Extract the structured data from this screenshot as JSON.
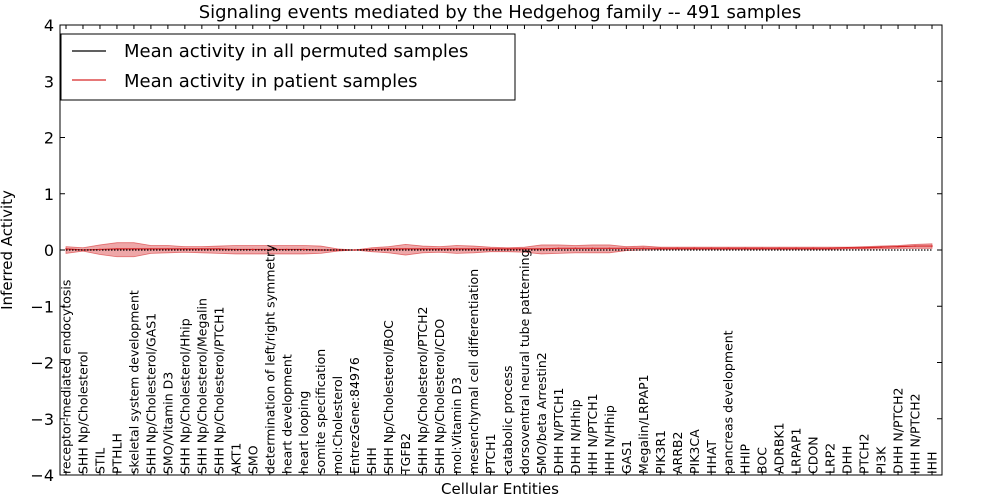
{
  "chart_data": {
    "type": "line",
    "title": "Signaling events mediated by the Hedgehog family -- 491 samples",
    "xlabel": "Cellular Entities",
    "ylabel": "Inferred Activity",
    "ylim": [
      -4,
      4
    ],
    "yticks": [
      4,
      3,
      2,
      1,
      0,
      -1,
      -2,
      -3,
      -4
    ],
    "ytick_labels": [
      "4",
      "3",
      "2",
      "1",
      "0",
      "−1",
      "−2",
      "−3",
      "−4"
    ],
    "grid": false,
    "legend_position": "top-left",
    "legend": [
      {
        "label": "Mean activity in all permuted samples",
        "color": "#000000"
      },
      {
        "label": "Mean activity in patient samples",
        "color": "#d62728"
      }
    ],
    "categories": [
      "receptor-mediated endocytosis",
      "SHH Np/Cholesterol",
      "STIL",
      "PTHLH",
      "skeletal system development",
      "SHH Np/Cholesterol/GAS1",
      "SMO/Vitamin D3",
      "SHH Np/Cholesterol/Hhip",
      "SHH Np/Cholesterol/Megalin",
      "SHH Np/Cholesterol/PTCH1",
      "AKT1",
      "SMO",
      "determination of left/right symmetry",
      "heart development",
      "heart looping",
      "somite specification",
      "mol:Cholesterol",
      "EntrezGene:84976",
      "SHH",
      "SHH Np/Cholesterol/BOC",
      "TGFB2",
      "SHH Np/Cholesterol/PTCH2",
      "SHH Np/Cholesterol/CDO",
      "mol:Vitamin D3",
      "mesenchymal cell differentiation",
      "PTCH1",
      "catabolic process",
      "dorsoventral neural tube patterning",
      "SMO/beta Arrestin2",
      "DHH N/PTCH1",
      "DHH N/Hhip",
      "IHH N/PTCH1",
      "IHH N/Hhip",
      "GAS1",
      "Megalin/LRPAP1",
      "PIK3R1",
      "ARRB2",
      "PIK3CA",
      "HHAT",
      "pancreas development",
      "HHIP",
      "BOC",
      "ADRBK1",
      "LRPAP1",
      "CDON",
      "LRP2",
      "DHH",
      "PTCH2",
      "PI3K",
      "DHH N/PTCH2",
      "IHH N/PTCH2",
      "IHH"
    ],
    "series": [
      {
        "name": "Mean activity in all permuted samples",
        "color": "#000000",
        "values": [
          0,
          0,
          0,
          0,
          0,
          0,
          0,
          0,
          0,
          0,
          0,
          0,
          0,
          0,
          0,
          0,
          0,
          0,
          0,
          0,
          0,
          0,
          0,
          0,
          0,
          0,
          0,
          0,
          0,
          0,
          0,
          0,
          0,
          0,
          0,
          0,
          0,
          0,
          0,
          0,
          0,
          0,
          0,
          0,
          0,
          0,
          0,
          0,
          0,
          0,
          0,
          0
        ]
      },
      {
        "name": "Mean activity in patient samples",
        "color": "#d62728",
        "values": [
          0.02,
          0.0,
          0.01,
          0.02,
          0.02,
          0.02,
          0.02,
          0.02,
          0.02,
          0.02,
          0.01,
          0.01,
          0.01,
          0.01,
          0.01,
          0.0,
          0.0,
          0.0,
          0.01,
          0.02,
          0.02,
          0.02,
          0.02,
          0.02,
          0.02,
          0.02,
          0.02,
          0.02,
          0.02,
          0.03,
          0.03,
          0.03,
          0.03,
          0.03,
          0.03,
          0.03,
          0.03,
          0.03,
          0.03,
          0.03,
          0.03,
          0.03,
          0.03,
          0.03,
          0.03,
          0.03,
          0.04,
          0.04,
          0.05,
          0.06,
          0.07,
          0.07
        ],
        "band_upper": [
          0.06,
          0.04,
          0.09,
          0.13,
          0.13,
          0.08,
          0.08,
          0.06,
          0.06,
          0.07,
          0.08,
          0.08,
          0.08,
          0.08,
          0.08,
          0.07,
          0.02,
          0.0,
          0.04,
          0.06,
          0.1,
          0.07,
          0.06,
          0.08,
          0.07,
          0.05,
          0.04,
          0.05,
          0.09,
          0.09,
          0.08,
          0.09,
          0.09,
          0.06,
          0.07,
          0.05,
          0.05,
          0.05,
          0.05,
          0.05,
          0.05,
          0.05,
          0.05,
          0.05,
          0.05,
          0.05,
          0.05,
          0.06,
          0.07,
          0.08,
          0.1,
          0.11
        ],
        "band_lower": [
          -0.06,
          -0.02,
          -0.08,
          -0.12,
          -0.12,
          -0.06,
          -0.05,
          -0.04,
          -0.05,
          -0.06,
          -0.07,
          -0.07,
          -0.07,
          -0.07,
          -0.07,
          -0.06,
          -0.02,
          0.0,
          -0.03,
          -0.05,
          -0.09,
          -0.05,
          -0.04,
          -0.06,
          -0.05,
          -0.03,
          -0.03,
          -0.04,
          -0.07,
          -0.06,
          -0.05,
          -0.05,
          -0.05,
          -0.01,
          0.0,
          0.01,
          0.01,
          0.01,
          0.01,
          0.01,
          0.01,
          0.01,
          0.01,
          0.01,
          0.01,
          0.01,
          0.02,
          0.02,
          0.02,
          0.03,
          0.03,
          0.03
        ]
      }
    ]
  }
}
